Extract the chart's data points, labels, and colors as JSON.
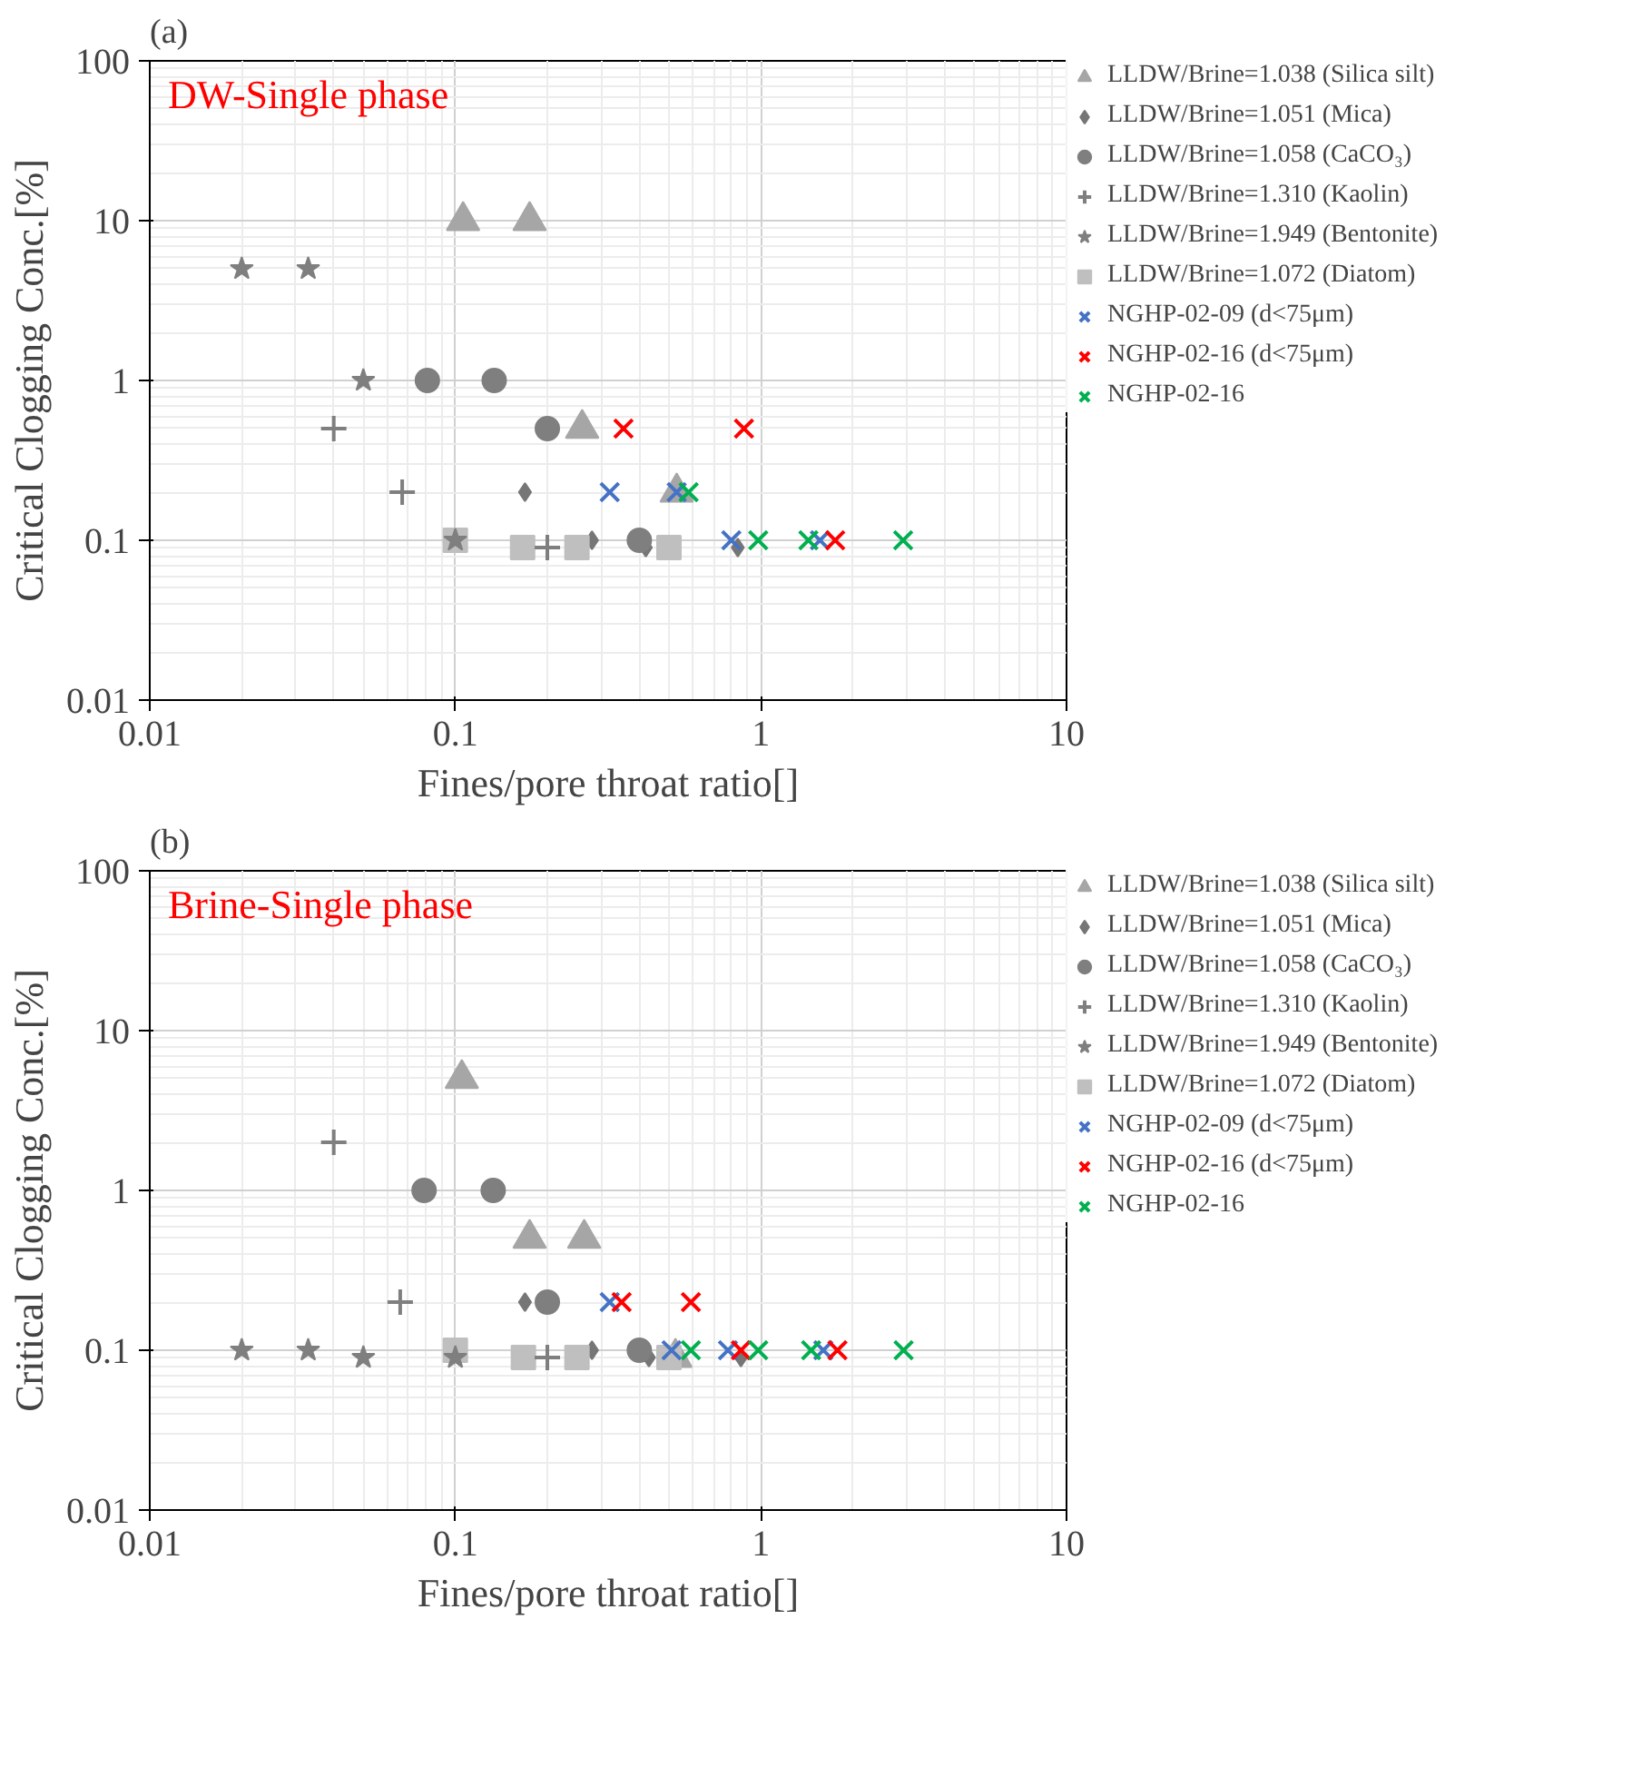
{
  "chart_data": [
    {
      "type": "scatter",
      "title": "(a)",
      "subtitle": "DW-Single phase",
      "xlabel": "Fines/pore throat ratio[]",
      "ylabel": "Critical Clogging Conc.[%]",
      "xlim": [
        0.01,
        10
      ],
      "ylim": [
        0.01,
        100
      ],
      "xticks": [
        0.01,
        0.1,
        1,
        10
      ],
      "yticks": [
        0.01,
        0.1,
        1,
        10,
        100
      ],
      "log": "xy",
      "grid": true,
      "legend": "right",
      "series": [
        {
          "name": "LLDW/Brine=1.038 (Silica silt)",
          "color": "#a6a6a6",
          "marker": "triangle",
          "x": [
            0.106,
            0.175,
            0.26,
            0.53
          ],
          "values": [
            10,
            10,
            0.5,
            0.2
          ]
        },
        {
          "name": "LLDW/Brine=1.051 (Mica)",
          "color": "#767676",
          "marker": "diamond",
          "x": [
            0.169,
            0.28,
            0.42,
            0.84
          ],
          "values": [
            0.2,
            0.1,
            0.09,
            0.09
          ]
        },
        {
          "name": "LLDW/Brine=1.058 (CaCO₃)",
          "color": "#7f7f7f",
          "marker": "circle",
          "x": [
            0.081,
            0.134,
            0.2,
            0.4
          ],
          "values": [
            1,
            1,
            0.5,
            0.1
          ]
        },
        {
          "name": "LLDW/Brine=1.310 (Kaolin)",
          "color": "#7f7f7f",
          "marker": "cross",
          "x": [
            0.04,
            0.067,
            0.2
          ],
          "values": [
            0.5,
            0.2,
            0.09
          ]
        },
        {
          "name": "LLDW/Brine=1.949 (Bentonite)",
          "color": "#7f7f7f",
          "marker": "star",
          "x": [
            0.02,
            0.033,
            0.05,
            0.1
          ],
          "values": [
            5,
            5,
            1,
            0.1
          ]
        },
        {
          "name": "LLDW/Brine=1.072 (Diatom)",
          "color": "#bfbfbf",
          "marker": "square",
          "x": [
            0.1,
            0.166,
            0.25,
            0.5
          ],
          "values": [
            0.1,
            0.09,
            0.09,
            0.09
          ]
        },
        {
          "name": "NGHP-02-09 (d<75μm)",
          "color": "#4472c4",
          "marker": "x",
          "x": [
            0.32,
            0.53,
            0.8,
            1.56
          ],
          "values": [
            0.2,
            0.2,
            0.1,
            0.1
          ]
        },
        {
          "name": "NGHP-02-16 (d<75μm)",
          "color": "#ff0000",
          "marker": "x",
          "x": [
            0.355,
            0.88,
            1.75
          ],
          "values": [
            0.5,
            0.5,
            0.1
          ]
        },
        {
          "name": "NGHP-02-16",
          "color": "#00b050",
          "marker": "x",
          "x": [
            0.58,
            0.98,
            1.43,
            2.92
          ],
          "values": [
            0.2,
            0.1,
            0.1,
            0.1
          ]
        }
      ]
    },
    {
      "type": "scatter",
      "title": "(b)",
      "subtitle": "Brine-Single phase",
      "xlabel": "Fines/pore throat ratio[]",
      "ylabel": "Critical Clogging Conc.[%]",
      "xlim": [
        0.01,
        10
      ],
      "ylim": [
        0.01,
        100
      ],
      "xticks": [
        0.01,
        0.1,
        1,
        10
      ],
      "yticks": [
        0.01,
        0.1,
        1,
        10,
        100
      ],
      "log": "xy",
      "grid": true,
      "legend": "right",
      "series": [
        {
          "name": "LLDW/Brine=1.038 (Silica silt)",
          "color": "#a6a6a6",
          "marker": "triangle",
          "x": [
            0.105,
            0.175,
            0.264,
            0.525
          ],
          "values": [
            5,
            0.5,
            0.5,
            0.09
          ]
        },
        {
          "name": "LLDW/Brine=1.051 (Mica)",
          "color": "#767676",
          "marker": "diamond",
          "x": [
            0.169,
            0.28,
            0.43,
            0.86
          ],
          "values": [
            0.2,
            0.1,
            0.09,
            0.09
          ]
        },
        {
          "name": "LLDW/Brine=1.058 (CaCO₃)",
          "color": "#7f7f7f",
          "marker": "circle",
          "x": [
            0.079,
            0.133,
            0.2,
            0.4
          ],
          "values": [
            1,
            1,
            0.2,
            0.1
          ]
        },
        {
          "name": "LLDW/Brine=1.310 (Kaolin)",
          "color": "#7f7f7f",
          "marker": "cross",
          "x": [
            0.04,
            0.066,
            0.2
          ],
          "values": [
            2,
            0.2,
            0.09
          ]
        },
        {
          "name": "LLDW/Brine=1.949 (Bentonite)",
          "color": "#7f7f7f",
          "marker": "star",
          "x": [
            0.02,
            0.033,
            0.05,
            0.1
          ],
          "values": [
            0.1,
            0.1,
            0.09,
            0.09
          ]
        },
        {
          "name": "LLDW/Brine=1.072 (Diatom)",
          "color": "#bfbfbf",
          "marker": "square",
          "x": [
            0.1,
            0.167,
            0.25,
            0.5
          ],
          "values": [
            0.1,
            0.09,
            0.09,
            0.09
          ]
        },
        {
          "name": "NGHP-02-09 (d<75μm)",
          "color": "#4472c4",
          "marker": "x",
          "x": [
            0.32,
            0.51,
            0.78,
            1.6
          ],
          "values": [
            0.2,
            0.1,
            0.1,
            0.1
          ]
        },
        {
          "name": "NGHP-02-16 (d<75μm)",
          "color": "#ff0000",
          "marker": "x",
          "x": [
            0.35,
            0.59,
            0.86,
            1.78
          ],
          "values": [
            0.2,
            0.2,
            0.1,
            0.1
          ]
        },
        {
          "name": "NGHP-02-16",
          "color": "#00b050",
          "marker": "x",
          "x": [
            0.59,
            0.98,
            1.46,
            2.93
          ],
          "values": [
            0.1,
            0.1,
            0.1,
            0.1
          ]
        }
      ]
    }
  ]
}
